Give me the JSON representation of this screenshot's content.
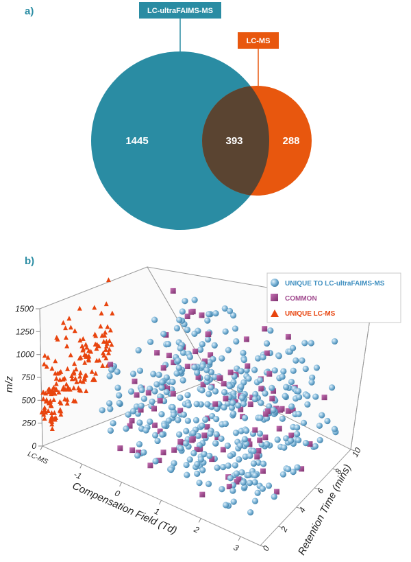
{
  "panels": {
    "a_label": "a)",
    "b_label": "b)"
  },
  "chart_data": [
    {
      "type": "venn",
      "sets": [
        {
          "name": "LC-ultraFAIMS-MS",
          "unique": 1445,
          "color": "#2a8ca3"
        },
        {
          "name": "LC-MS",
          "unique": 288,
          "color": "#e8570e"
        }
      ],
      "overlap": {
        "value": 393,
        "color": "#5a4431"
      }
    },
    {
      "type": "scatter",
      "dimensions": 3,
      "xlabel": "Compensation Field (Td)",
      "ylabel": "Retention Time (mins)",
      "zlabel": "m/z",
      "x_ticks": [
        "LC-MS",
        "-1",
        "0",
        "1",
        "2",
        "3"
      ],
      "y_ticks": [
        "0",
        "2",
        "4",
        "6",
        "8",
        "10"
      ],
      "z_ticks": [
        "0",
        "250",
        "500",
        "750",
        "1000",
        "1250",
        "1500"
      ],
      "xlim": [
        -2,
        3.5
      ],
      "ylim": [
        0,
        10
      ],
      "zlim": [
        0,
        1500
      ],
      "legend": {
        "position": "top-right"
      },
      "series": [
        {
          "name": "UNIQUE TO LC-ultraFAIMS-MS",
          "marker": "sphere",
          "color": "#6aa5c9",
          "text_color": "#3f8fc0"
        },
        {
          "name": "COMMON",
          "marker": "square",
          "color": "#a04a8e",
          "text_color": "#a04a8e"
        },
        {
          "name": "UNIQUE LC-MS",
          "marker": "triangle",
          "color": "#e8440e",
          "text_color": "#e8440e"
        }
      ]
    }
  ]
}
